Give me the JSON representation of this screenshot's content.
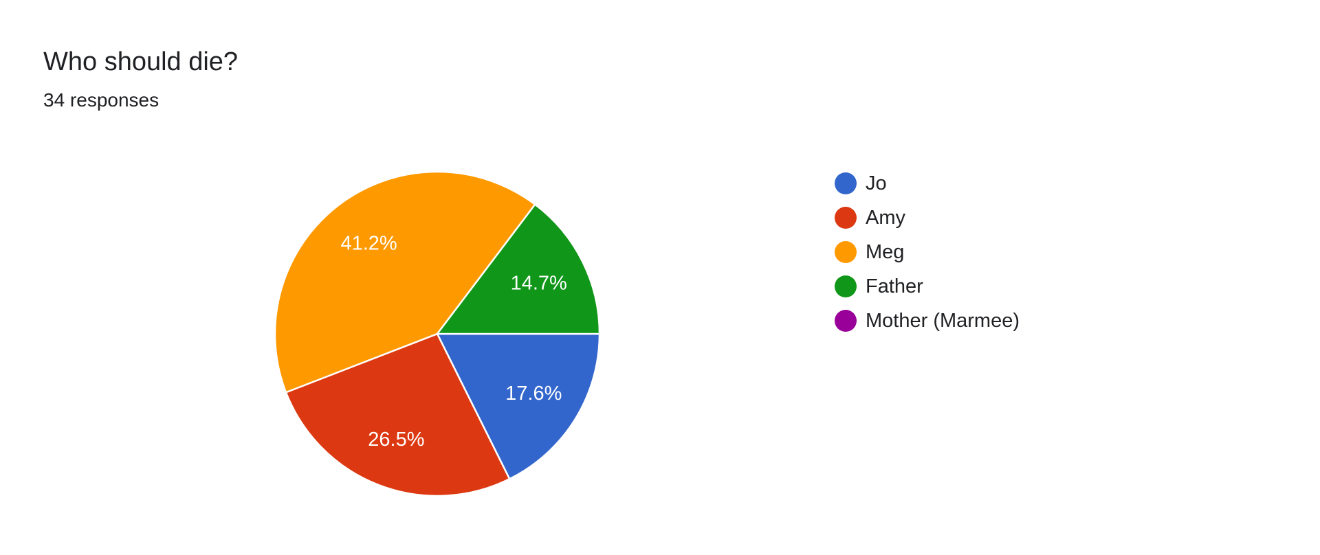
{
  "header": {
    "title": "Who should die?",
    "subtitle": "34 responses"
  },
  "chart_data": {
    "type": "pie",
    "title": "Who should die?",
    "subtitle": "34 responses",
    "total_responses": 34,
    "legend_position": "right",
    "start_angle_deg": 90,
    "direction": "clockwise",
    "slices": [
      {
        "label": "Jo",
        "count": 6,
        "percent": 17.6,
        "value_label": "17.6%",
        "color": "#3366cc"
      },
      {
        "label": "Amy",
        "count": 9,
        "percent": 26.5,
        "value_label": "26.5%",
        "color": "#dc3912"
      },
      {
        "label": "Meg",
        "count": 14,
        "percent": 41.2,
        "value_label": "41.2%",
        "color": "#ff9900"
      },
      {
        "label": "Father",
        "count": 5,
        "percent": 14.7,
        "value_label": "14.7%",
        "color": "#109618"
      },
      {
        "label": "Mother (Marmee)",
        "count": 0,
        "percent": 0,
        "value_label": "",
        "color": "#990099"
      }
    ]
  }
}
